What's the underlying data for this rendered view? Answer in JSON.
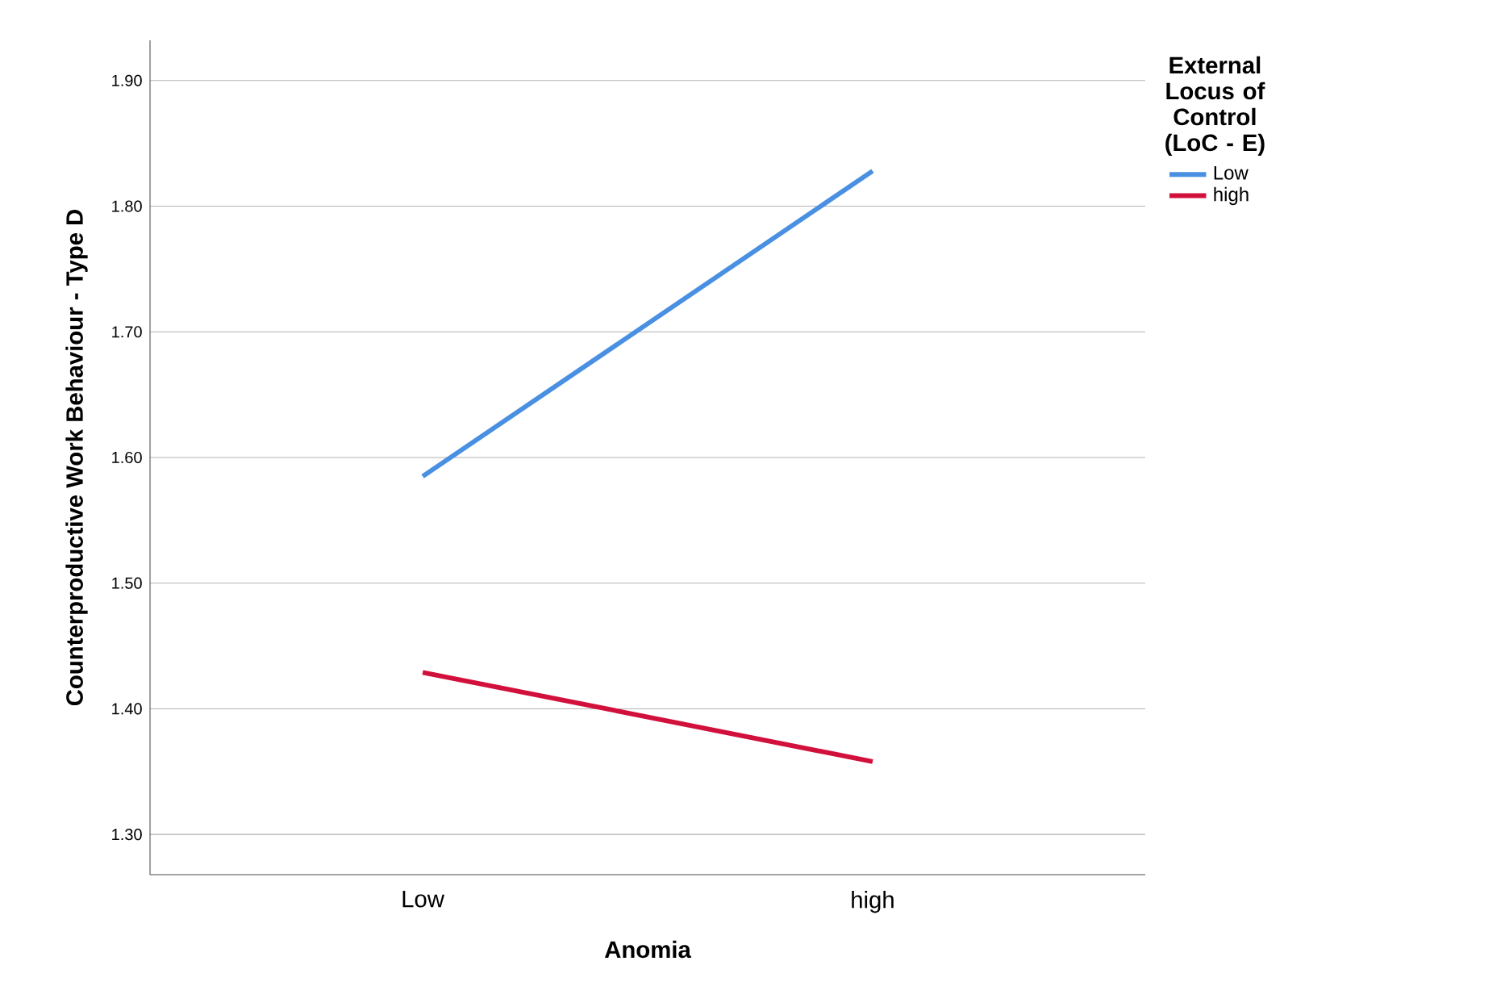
{
  "chart_data": {
    "type": "line",
    "xlabel": "Anomia",
    "ylabel": "Counterproductive Work Behaviour - Type D",
    "legend_title": "External Locus of Control (LoC - E)",
    "categories": [
      "Low",
      "high"
    ],
    "series": [
      {
        "name": "Low",
        "color": "#4a90e2",
        "values": [
          1.585,
          1.828
        ]
      },
      {
        "name": "high",
        "color": "#d2103c",
        "values": [
          1.429,
          1.358
        ]
      }
    ],
    "ylim": [
      1.268,
      1.932
    ],
    "yticks": [
      {
        "value": 1.3,
        "label": "1.30"
      },
      {
        "value": 1.4,
        "label": "1.40"
      },
      {
        "value": 1.5,
        "label": "1.50"
      },
      {
        "value": 1.6,
        "label": "1.60"
      },
      {
        "value": 1.7,
        "label": "1.70"
      },
      {
        "value": 1.8,
        "label": "1.80"
      },
      {
        "value": 1.9,
        "label": "1.90"
      }
    ],
    "grid": "y",
    "legend": "top right",
    "marker": "none",
    "line_style": "solid"
  }
}
